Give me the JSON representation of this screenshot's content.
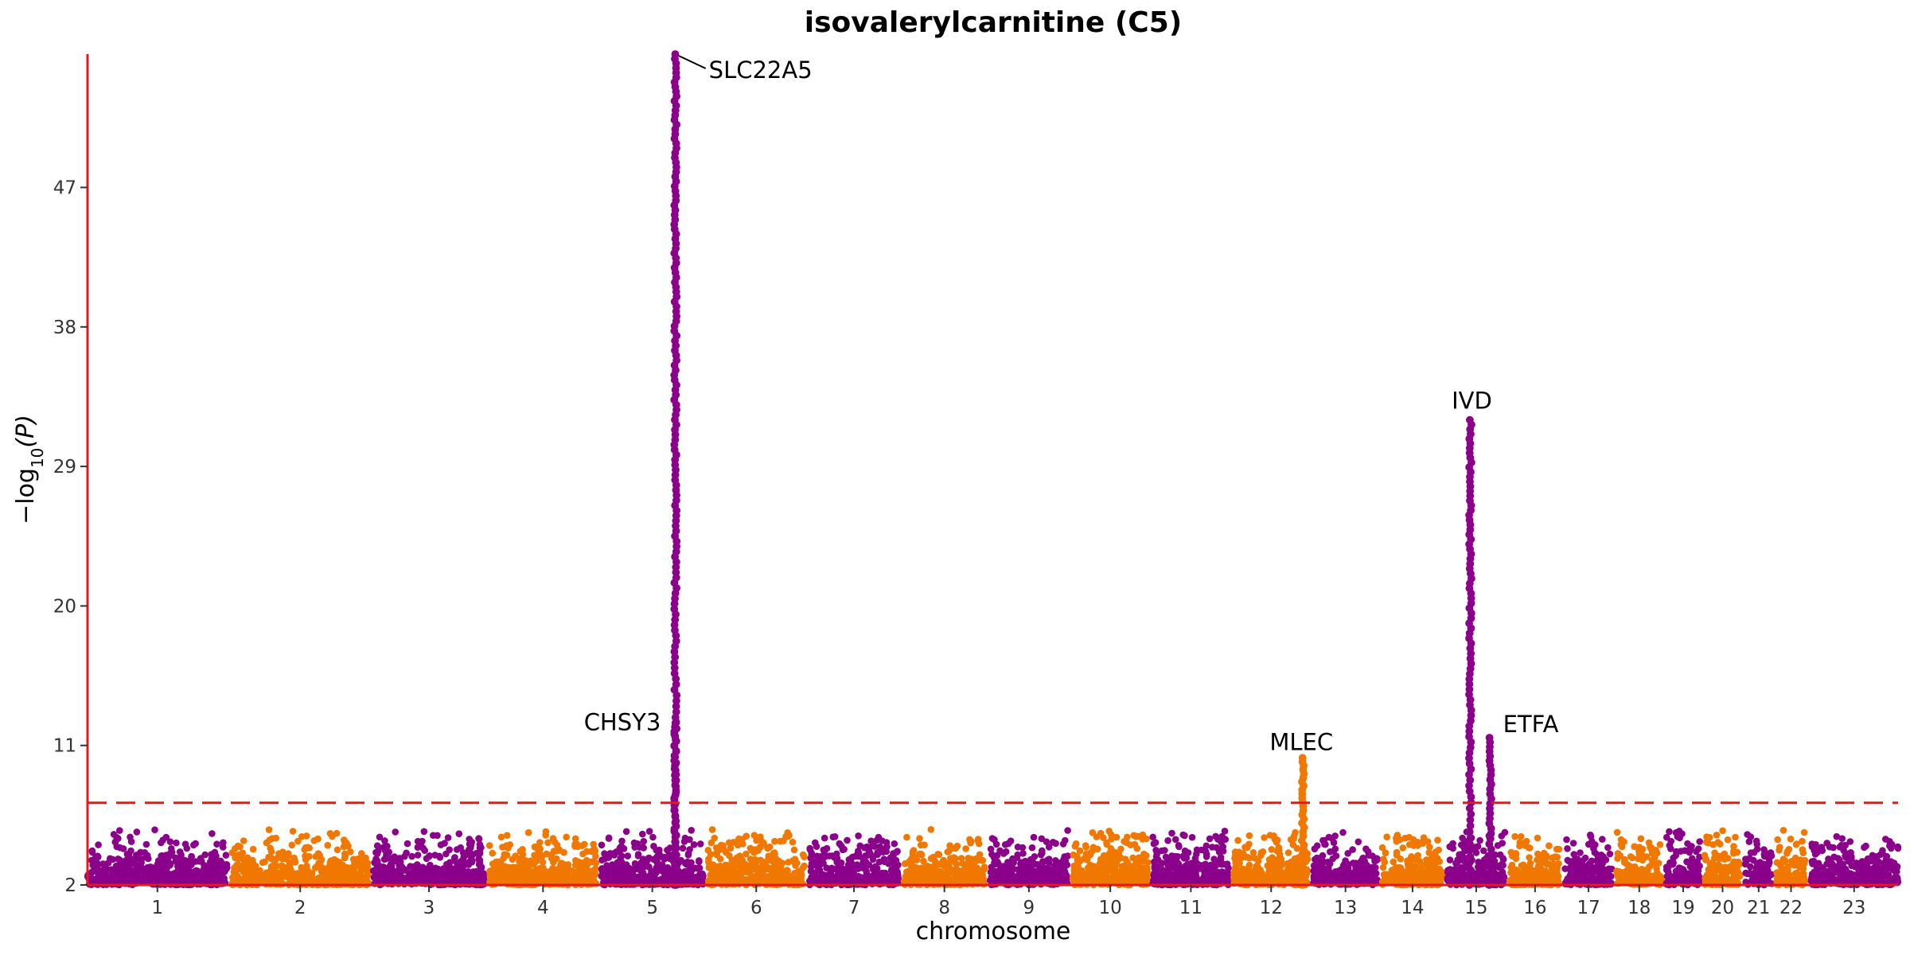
{
  "chart_data": {
    "type": "scatter",
    "title": "isovalerylcarnitine (C5)",
    "xlabel": "chromosome",
    "ylabel": "−log",
    "ylabel_sub": "10",
    "ylabel_var": "(P)",
    "yticks": [
      2,
      11,
      20,
      29,
      38,
      47
    ],
    "ylim": [
      2,
      55.6
    ],
    "significance_line": 7.3,
    "colors": {
      "odd": "#8B008B",
      "even": "#F07800",
      "axis": "#E31A1C",
      "threshold": "#E31A1C"
    },
    "chromosomes": [
      {
        "label": "1",
        "size": 248
      },
      {
        "label": "2",
        "size": 242
      },
      {
        "label": "3",
        "size": 198
      },
      {
        "label": "4",
        "size": 190
      },
      {
        "label": "5",
        "size": 181
      },
      {
        "label": "6",
        "size": 171
      },
      {
        "label": "7",
        "size": 159
      },
      {
        "label": "8",
        "size": 145
      },
      {
        "label": "9",
        "size": 138
      },
      {
        "label": "10",
        "size": 134
      },
      {
        "label": "11",
        "size": 135
      },
      {
        "label": "12",
        "size": 133
      },
      {
        "label": "13",
        "size": 114
      },
      {
        "label": "14",
        "size": 107
      },
      {
        "label": "15",
        "size": 102
      },
      {
        "label": "16",
        "size": 90
      },
      {
        "label": "17",
        "size": 83
      },
      {
        "label": "18",
        "size": 80
      },
      {
        "label": "19",
        "size": 59
      },
      {
        "label": "20",
        "size": 64
      },
      {
        "label": "21",
        "size": 47
      },
      {
        "label": "22",
        "size": 51
      },
      {
        "label": "23",
        "size": 156
      }
    ],
    "peaks": [
      {
        "chr": "5",
        "pos": 131.5,
        "top": 55.6,
        "gene": "SLC22A5"
      },
      {
        "chr": "5",
        "pos": 131.0,
        "top": 12.5,
        "gene": "CHSY3"
      },
      {
        "chr": "12",
        "pos": 123.0,
        "top": 10.2,
        "gene": "MLEC"
      },
      {
        "chr": "15",
        "pos": 40.5,
        "top": 32.0,
        "gene": "IVD"
      },
      {
        "chr": "15",
        "pos": 76.0,
        "top": 11.5,
        "gene": "ETFA"
      }
    ]
  }
}
